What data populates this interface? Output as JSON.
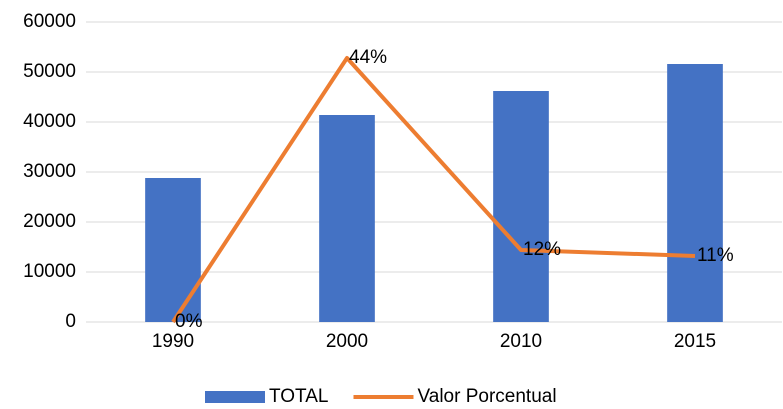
{
  "chart_data": {
    "type": "bar",
    "categories": [
      "1990",
      "2000",
      "2010",
      "2015"
    ],
    "series": [
      {
        "name": "TOTAL",
        "type": "bar",
        "color": "#4472c4",
        "values": [
          28800,
          41400,
          46200,
          51600
        ]
      },
      {
        "name": "Valor Porcentual",
        "type": "line",
        "axis": "y2",
        "color": "#ed7d31",
        "values": [
          0,
          44,
          12,
          11
        ],
        "value_labels": [
          "0%",
          "44%",
          "12%",
          "11%"
        ]
      }
    ],
    "ylim": [
      0,
      60000
    ],
    "yticks": [
      0,
      10000,
      20000,
      30000,
      40000,
      50000,
      60000
    ],
    "y2lim": [
      0,
      50
    ],
    "grid": true,
    "legend": "bottom"
  }
}
